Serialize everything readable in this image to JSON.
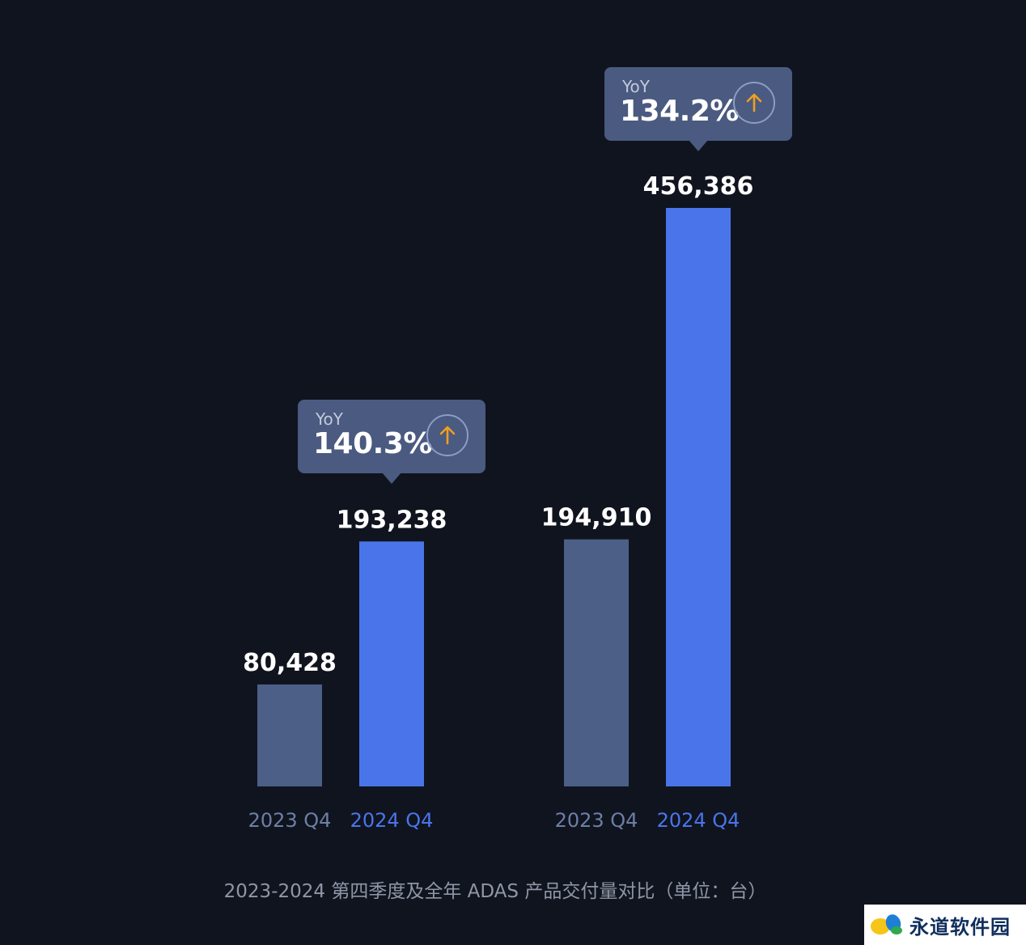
{
  "chart_data": {
    "type": "bar",
    "groups": [
      {
        "categories": [
          "2023 Q4",
          "2024 Q4"
        ],
        "values": [
          80428,
          193238
        ],
        "value_labels": [
          "80,428",
          "193,238"
        ],
        "yoy": {
          "label": "YoY",
          "value": "140.3%"
        }
      },
      {
        "categories": [
          "2023 Q4",
          "2024 Q4"
        ],
        "values": [
          194910,
          456386
        ],
        "value_labels": [
          "194,910",
          "456,386"
        ],
        "yoy": {
          "label": "YoY",
          "value": "134.2%"
        }
      }
    ],
    "title": "2023-2024 第四季度及全年 ADAS 产品交付量对比（单位：台）",
    "colors": {
      "2023 Q4": "#4c5f87",
      "2024 Q4": "#4a75ea"
    },
    "grid": false
  },
  "icons": {
    "yoy_arrow": "arrow-up-icon",
    "watermark_logo": "leaf-logo-icon"
  },
  "colors": {
    "background": "#10141f",
    "yoy_box": "#4a5a80",
    "arrow": "#f0a020"
  },
  "watermark": {
    "text": "永道软件园"
  }
}
